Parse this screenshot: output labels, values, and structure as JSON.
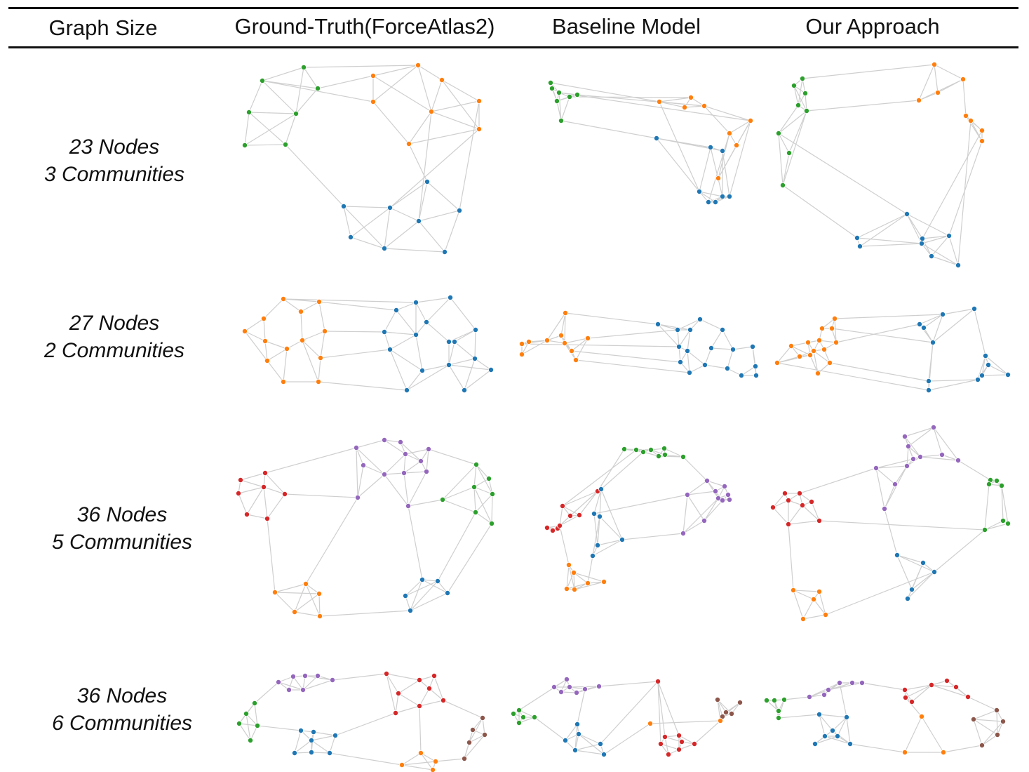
{
  "header": {
    "col_graph_size": "Graph Size",
    "col_ground_truth": "Ground-Truth(ForceAtlas2)",
    "col_baseline": "Baseline Model",
    "col_ours": "Our Approach"
  },
  "rows": [
    {
      "line1": "23 Nodes",
      "line2": "3 Communities"
    },
    {
      "line1": "27 Nodes",
      "line2": "2 Communities"
    },
    {
      "line1": "36 Nodes",
      "line2": "5 Communities"
    },
    {
      "line1": "36 Nodes",
      "line2": "6 Communities"
    }
  ],
  "community_colors": {
    "green": "#2ca02c",
    "orange": "#ff7f0e",
    "blue": "#1f77b4",
    "red": "#d62728",
    "purple": "#9467bd",
    "brown": "#8c564b"
  },
  "edge_color": "#cfcfcf"
}
